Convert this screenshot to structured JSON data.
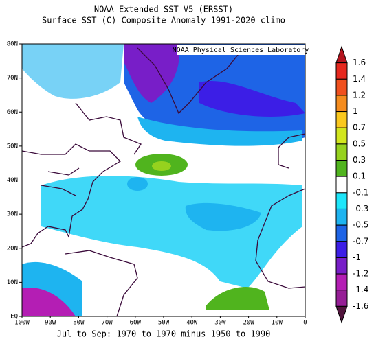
{
  "title": "NOAA Extended SST V5 (ERSST)",
  "subtitle": "Surface SST (C) Composite Anomaly 1991-2020 climo",
  "credit": "NOAA Physical Sciences Laboratory",
  "footer": "Jul to Sep: 1970 to 1970 minus 1950 to 1990",
  "lat_labels": [
    "80N",
    "70N",
    "60N",
    "50N",
    "40N",
    "30N",
    "20N",
    "10N",
    "EQ"
  ],
  "lon_labels": [
    "100W",
    "90W",
    "80W",
    "70W",
    "60W",
    "50W",
    "40W",
    "30W",
    "20W",
    "10W",
    "0"
  ],
  "colorbar": {
    "levels": [
      1.6,
      1.4,
      1.2,
      1,
      0.7,
      0.5,
      0.3,
      0.1,
      -0.1,
      -0.3,
      -0.5,
      -0.7,
      -1,
      -1.2,
      -1.4,
      -1.6
    ],
    "colors": [
      "#b4141e",
      "#e6281e",
      "#f0501e",
      "#f58c1e",
      "#fac81e",
      "#d2e61e",
      "#96d21e",
      "#50b41e",
      "#ffffff",
      "#1ee6fa",
      "#1eb4f0",
      "#1e64e6",
      "#3c1ee6",
      "#781ec8",
      "#b41eb4",
      "#961e96",
      "#50143c"
    ]
  }
}
